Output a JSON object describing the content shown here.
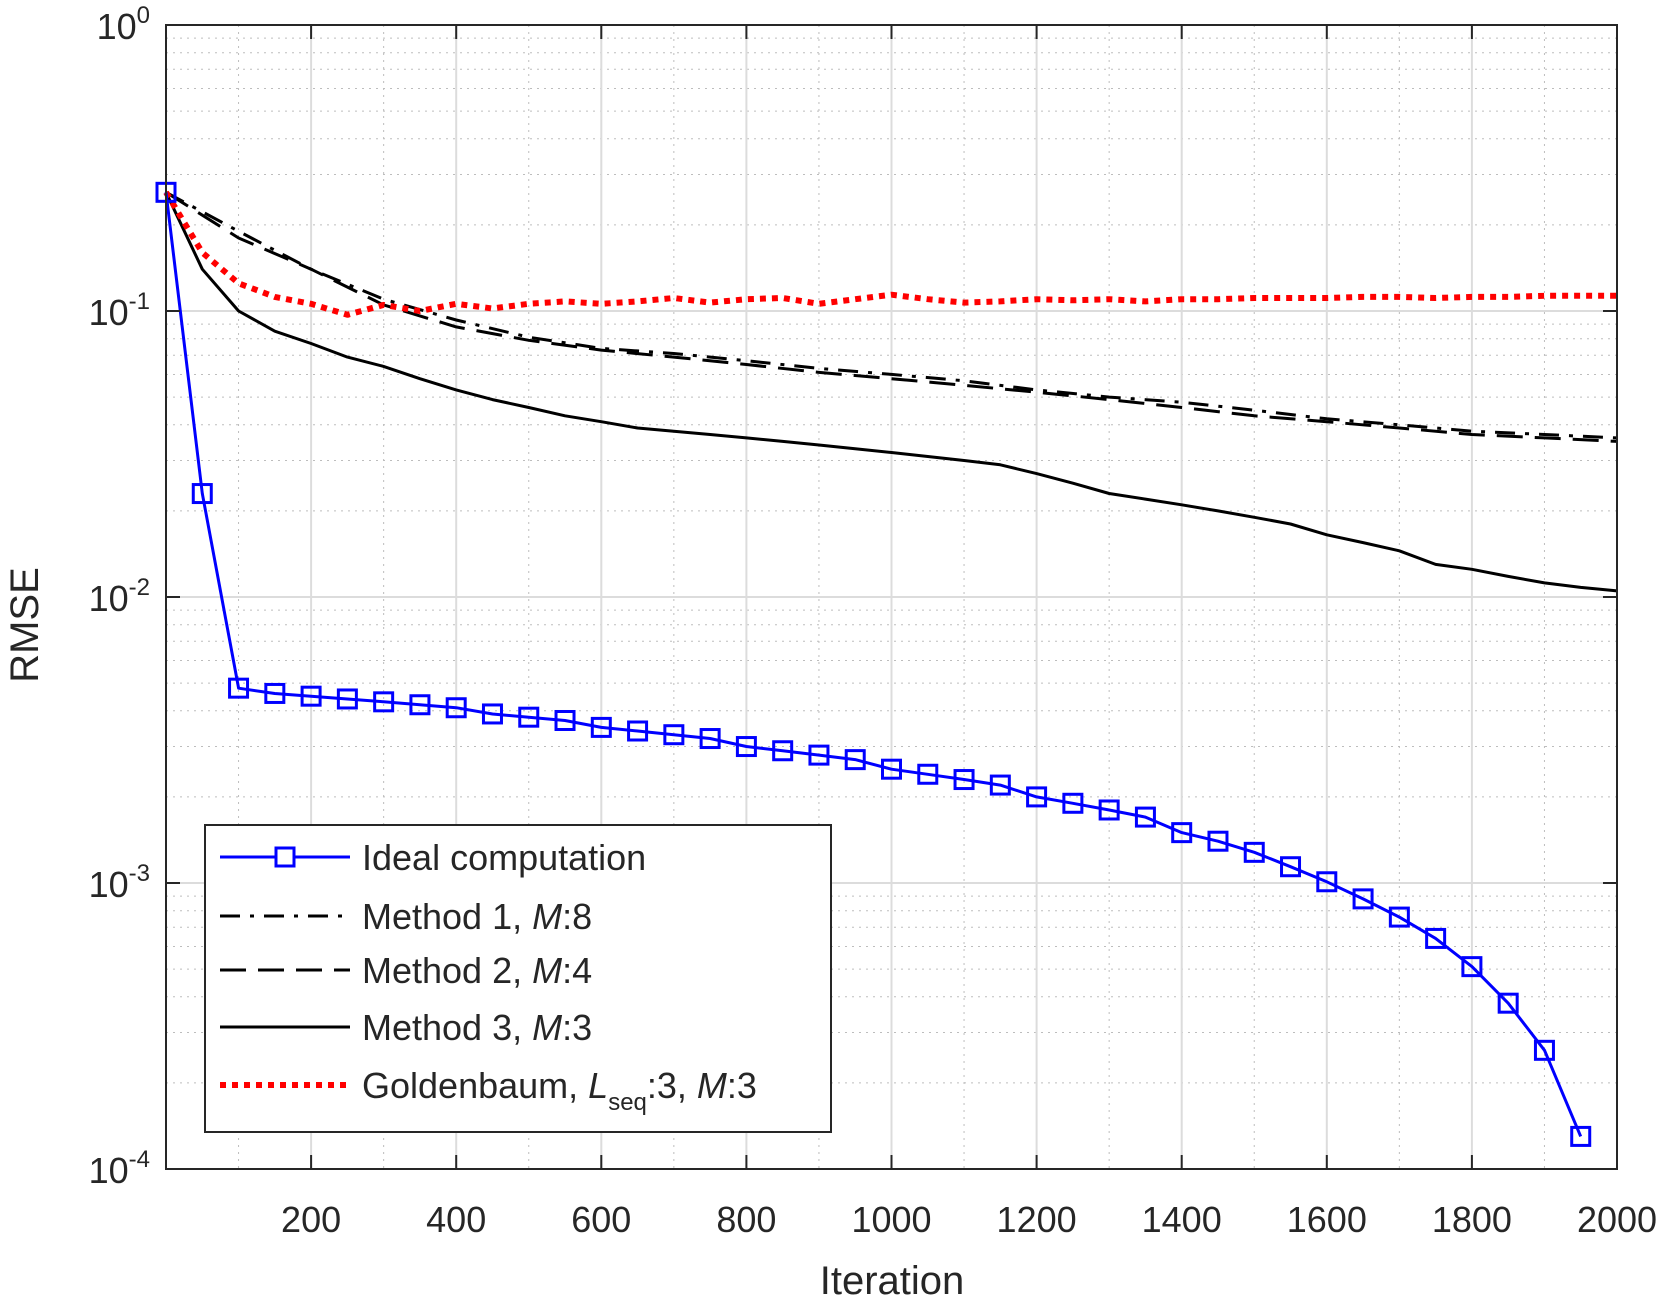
{
  "chart_data": {
    "type": "line",
    "title": "",
    "xlabel": "Iteration",
    "ylabel": "RMSE",
    "xlim": [
      0,
      2000
    ],
    "ylim": [
      0.0001,
      1
    ],
    "yscale": "log",
    "grid": true,
    "legend_position": "bottom-left",
    "x_ticks": [
      200,
      400,
      600,
      800,
      1000,
      1200,
      1400,
      1600,
      1800,
      2000
    ],
    "y_ticks": [
      {
        "value": 1,
        "base": "10",
        "exp": "0"
      },
      {
        "value": 0.1,
        "base": "10",
        "exp": "-1"
      },
      {
        "value": 0.01,
        "base": "10",
        "exp": "-2"
      },
      {
        "value": 0.001,
        "base": "10",
        "exp": "-3"
      },
      {
        "value": 0.0001,
        "base": "10",
        "exp": "-4"
      }
    ],
    "series": [
      {
        "key": "method1",
        "legend": {
          "text": "Method 1, ",
          "italic": "M",
          "tail": ":8"
        },
        "color": "#000000",
        "style": "dashdot",
        "width": 3,
        "x": [
          0,
          100,
          200,
          300,
          400,
          500,
          600,
          700,
          800,
          900,
          1000,
          1100,
          1200,
          1300,
          1400,
          1500,
          1600,
          1700,
          1800,
          1900,
          2000
        ],
        "y": [
          0.26,
          0.19,
          0.14,
          0.11,
          0.093,
          0.081,
          0.074,
          0.071,
          0.067,
          0.063,
          0.06,
          0.057,
          0.053,
          0.05,
          0.048,
          0.045,
          0.042,
          0.04,
          0.038,
          0.037,
          0.036
        ]
      },
      {
        "key": "method2",
        "legend": {
          "text": "Method 2, ",
          "italic": "M",
          "tail": ":4"
        },
        "color": "#000000",
        "style": "dashed",
        "width": 3,
        "x": [
          0,
          100,
          200,
          300,
          400,
          500,
          600,
          700,
          800,
          900,
          1000,
          1100,
          1200,
          1300,
          1400,
          1500,
          1600,
          1700,
          1800,
          1900,
          2000
        ],
        "y": [
          0.26,
          0.18,
          0.14,
          0.105,
          0.088,
          0.079,
          0.073,
          0.069,
          0.065,
          0.061,
          0.058,
          0.055,
          0.052,
          0.049,
          0.046,
          0.043,
          0.041,
          0.039,
          0.037,
          0.036,
          0.035
        ]
      },
      {
        "key": "method3",
        "legend": {
          "text": "Method 3, ",
          "italic": "M",
          "tail": ":3"
        },
        "color": "#000000",
        "style": "solid",
        "width": 3,
        "x": [
          0,
          50,
          100,
          150,
          200,
          250,
          300,
          350,
          400,
          450,
          500,
          550,
          600,
          650,
          700,
          750,
          800,
          850,
          900,
          950,
          1000,
          1050,
          1100,
          1150,
          1200,
          1250,
          1300,
          1350,
          1400,
          1450,
          1500,
          1550,
          1600,
          1650,
          1700,
          1750,
          1800,
          1850,
          1900,
          1950,
          2000
        ],
        "y": [
          0.26,
          0.14,
          0.1,
          0.085,
          0.077,
          0.069,
          0.064,
          0.058,
          0.053,
          0.049,
          0.046,
          0.043,
          0.041,
          0.039,
          0.038,
          0.037,
          0.036,
          0.035,
          0.034,
          0.033,
          0.032,
          0.031,
          0.03,
          0.029,
          0.027,
          0.025,
          0.023,
          0.022,
          0.021,
          0.02,
          0.019,
          0.018,
          0.0165,
          0.0155,
          0.0145,
          0.013,
          0.0125,
          0.0118,
          0.0112,
          0.0108,
          0.0105
        ]
      },
      {
        "key": "goldenbaum",
        "legend": {
          "text": "Goldenbaum, ",
          "italic": "L",
          "sub": "seq",
          "tail": ":3, ",
          "italic2": "M",
          "tail2": ":3"
        },
        "color": "#ff0000",
        "style": "dotted",
        "width": 6,
        "x": [
          0,
          50,
          100,
          150,
          200,
          250,
          300,
          350,
          400,
          450,
          500,
          550,
          600,
          650,
          700,
          750,
          800,
          850,
          900,
          950,
          1000,
          1050,
          1100,
          1150,
          1200,
          1250,
          1300,
          1350,
          1400,
          1450,
          1500,
          1550,
          1600,
          1650,
          1700,
          1750,
          1800,
          1850,
          1900,
          1950,
          2000
        ],
        "y": [
          0.26,
          0.16,
          0.125,
          0.112,
          0.106,
          0.097,
          0.105,
          0.1,
          0.106,
          0.102,
          0.106,
          0.108,
          0.106,
          0.108,
          0.111,
          0.107,
          0.11,
          0.111,
          0.106,
          0.11,
          0.114,
          0.11,
          0.107,
          0.108,
          0.11,
          0.109,
          0.11,
          0.108,
          0.11,
          0.11,
          0.111,
          0.111,
          0.111,
          0.112,
          0.112,
          0.111,
          0.112,
          0.112,
          0.113,
          0.113,
          0.113
        ]
      },
      {
        "key": "ideal",
        "legend": {
          "text": "Ideal computation"
        },
        "color": "#0000ff",
        "style": "solid",
        "width": 3,
        "marker": "square",
        "x": [
          0,
          50,
          100,
          150,
          200,
          250,
          300,
          350,
          400,
          450,
          500,
          550,
          600,
          650,
          700,
          750,
          800,
          850,
          900,
          950,
          1000,
          1050,
          1100,
          1150,
          1200,
          1250,
          1300,
          1350,
          1400,
          1450,
          1500,
          1550,
          1600,
          1650,
          1700,
          1750,
          1800,
          1850,
          1900,
          1950
        ],
        "y": [
          0.26,
          0.023,
          0.0048,
          0.0046,
          0.0045,
          0.0044,
          0.0043,
          0.0042,
          0.0041,
          0.0039,
          0.0038,
          0.0037,
          0.0035,
          0.0034,
          0.0033,
          0.0032,
          0.003,
          0.0029,
          0.0028,
          0.0027,
          0.0025,
          0.0024,
          0.0023,
          0.0022,
          0.002,
          0.0019,
          0.0018,
          0.0017,
          0.0015,
          0.0014,
          0.00128,
          0.00114,
          0.00101,
          0.00088,
          0.00076,
          0.00064,
          0.00051,
          0.00038,
          0.00026,
          0.00013
        ]
      }
    ],
    "legend_order": [
      "ideal",
      "method1",
      "method2",
      "method3",
      "goldenbaum"
    ]
  }
}
